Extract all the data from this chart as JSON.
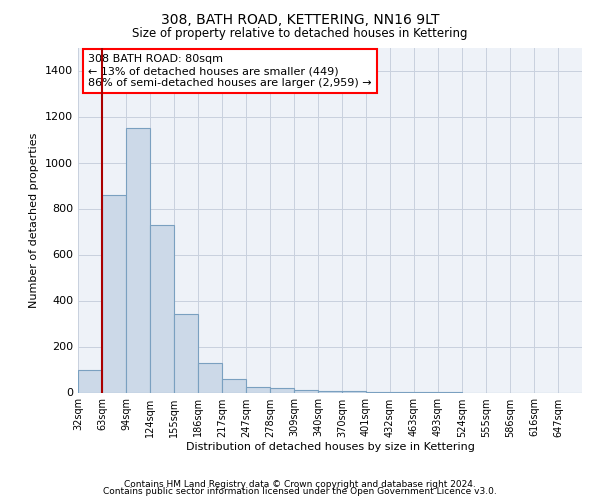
{
  "title": "308, BATH ROAD, KETTERING, NN16 9LT",
  "subtitle": "Size of property relative to detached houses in Kettering",
  "xlabel": "Distribution of detached houses by size in Kettering",
  "ylabel": "Number of detached properties",
  "bar_color": "#ccd9e8",
  "bar_edge_color": "#7aa0c0",
  "grid_color": "#c8d0de",
  "bg_color": "#eef2f8",
  "vline_color": "#aa0000",
  "categories": [
    "32sqm",
    "63sqm",
    "94sqm",
    "124sqm",
    "155sqm",
    "186sqm",
    "217sqm",
    "247sqm",
    "278sqm",
    "309sqm",
    "340sqm",
    "370sqm",
    "401sqm",
    "432sqm",
    "463sqm",
    "493sqm",
    "524sqm",
    "555sqm",
    "586sqm",
    "616sqm",
    "647sqm"
  ],
  "values": [
    100,
    860,
    1150,
    730,
    340,
    130,
    60,
    25,
    18,
    10,
    8,
    5,
    3,
    2,
    1,
    1,
    0,
    0,
    0,
    0,
    0
  ],
  "vline_x": 1,
  "annotation_text": "308 BATH ROAD: 80sqm\n← 13% of detached houses are smaller (449)\n86% of semi-detached houses are larger (2,959) →",
  "ylim": [
    0,
    1500
  ],
  "yticks": [
    0,
    200,
    400,
    600,
    800,
    1000,
    1200,
    1400
  ],
  "footer_line1": "Contains HM Land Registry data © Crown copyright and database right 2024.",
  "footer_line2": "Contains public sector information licensed under the Open Government Licence v3.0."
}
